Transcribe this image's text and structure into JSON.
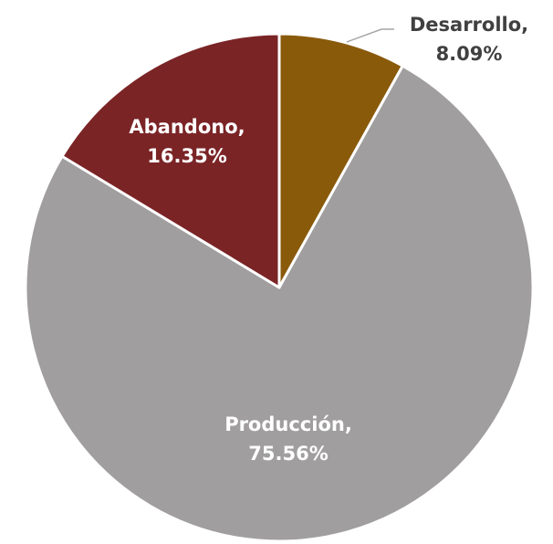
{
  "chart_data": {
    "type": "pie",
    "title": "",
    "slices": [
      {
        "label": "Desarrollo",
        "value": 8.09,
        "value_text": "8.09%",
        "color": "#8a5a0b",
        "label_color": "#404040",
        "label_placement": "outside-with-leader"
      },
      {
        "label": "Producción",
        "value": 75.56,
        "value_text": "75.56%",
        "color": "#a09e9e",
        "label_color": "#ffffff",
        "label_placement": "inside"
      },
      {
        "label": "Abandono",
        "value": 16.35,
        "value_text": "16.35%",
        "color": "#7a2426",
        "label_color": "#ffffff",
        "label_placement": "inside"
      }
    ],
    "start_angle": "12 o'clock",
    "direction": "clockwise",
    "slice_border_color": "#ffffff",
    "leader_line_color": "#a6a6a6",
    "legend": "none"
  }
}
